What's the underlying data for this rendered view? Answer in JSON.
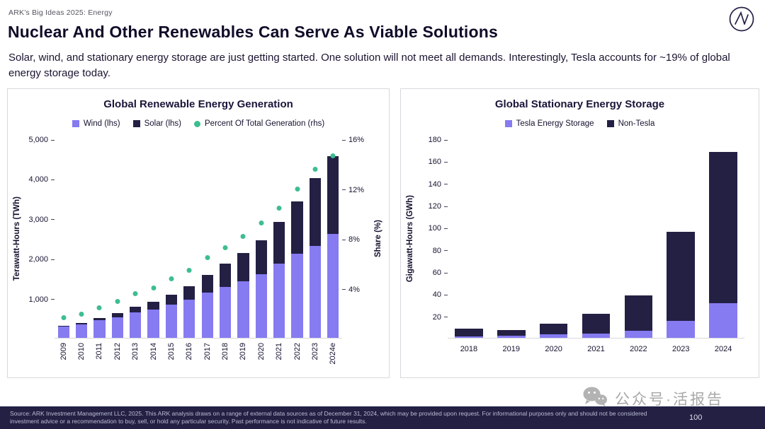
{
  "page": {
    "eyebrow": "ARK’s Big Ideas 2025: Energy",
    "title": "Nuclear And Other Renewables Can Serve As Viable Solutions",
    "subtitle": "Solar, wind, and stationary energy storage are just getting started. One solution will not meet all demands. Interestingly, Tesla accounts for ~19% of global energy storage today.",
    "page_number": "100"
  },
  "colors": {
    "purple": "#867BF1",
    "navy": "#232044",
    "green": "#3EBD90",
    "title": "#16112F",
    "panel_border": "#D9D9DE",
    "footer_bg": "#232044",
    "watermark_gray": "#A8A8A8"
  },
  "chart_data": [
    {
      "type": "bar",
      "subtype": "stacked-bars-with-scatter-overlay",
      "title": "Global Renewable Energy Generation",
      "ylabel": "Terawatt-Hours (TWh)",
      "y2label": "Share (%)",
      "ylim": [
        0,
        5000
      ],
      "y2lim": [
        0,
        16
      ],
      "grid": false,
      "legend_position": "top",
      "rotate_categories": true,
      "categories": [
        "2009",
        "2010",
        "2011",
        "2012",
        "2013",
        "2014",
        "2015",
        "2016",
        "2017",
        "2018",
        "2019",
        "2020",
        "2021",
        "2022",
        "2023",
        "2024e"
      ],
      "series": [
        {
          "name": "Wind (lhs)",
          "color": "purple",
          "shape": "square",
          "values": [
            276,
            342,
            436,
            523,
            645,
            706,
            831,
            959,
            1136,
            1269,
            1420,
            1591,
            1862,
            2104,
            2310,
            2600
          ]
        },
        {
          "name": "Solar (lhs)",
          "color": "navy",
          "shape": "square",
          "values": [
            20,
            32,
            63,
            99,
            139,
            198,
            256,
            329,
            443,
            585,
            704,
            853,
            1040,
            1310,
            1700,
            1950
          ]
        }
      ],
      "overlay": {
        "name": "Percent Of Total Generation (rhs)",
        "color": "green",
        "shape": "circle",
        "axis": "right",
        "values": [
          1.6,
          1.9,
          2.4,
          2.9,
          3.5,
          4.0,
          4.7,
          5.4,
          6.4,
          7.2,
          8.1,
          9.2,
          10.4,
          11.9,
          13.5,
          14.6
        ]
      },
      "yticks": [
        {
          "v": 1000,
          "label": "1,000"
        },
        {
          "v": 2000,
          "label": "2,000"
        },
        {
          "v": 3000,
          "label": "3,000"
        },
        {
          "v": 4000,
          "label": "4,000"
        },
        {
          "v": 5000,
          "label": "5,000"
        }
      ],
      "y2ticks": [
        {
          "v": 4,
          "label": "4%"
        },
        {
          "v": 8,
          "label": "8%"
        },
        {
          "v": 12,
          "label": "12%"
        },
        {
          "v": 16,
          "label": "16%"
        }
      ]
    },
    {
      "type": "bar",
      "subtype": "stacked-bars",
      "title": "Global Stationary Energy Storage",
      "ylabel": "Gigawatt-Hours (GWh)",
      "ylim": [
        0,
        180
      ],
      "grid": false,
      "legend_position": "top",
      "rotate_categories": false,
      "categories": [
        "2018",
        "2019",
        "2020",
        "2021",
        "2022",
        "2023",
        "2024"
      ],
      "series": [
        {
          "name": "Tesla Energy Storage",
          "color": "purple",
          "shape": "square",
          "values": [
            1.0,
            1.7,
            3.0,
            4.0,
            6.5,
            15.5,
            31
          ]
        },
        {
          "name": "Non-Tesla",
          "color": "navy",
          "shape": "square",
          "values": [
            7.5,
            5.5,
            9.5,
            18,
            31.5,
            80.5,
            137
          ]
        }
      ],
      "yticks": [
        {
          "v": 20,
          "label": "20"
        },
        {
          "v": 40,
          "label": "40"
        },
        {
          "v": 60,
          "label": "60"
        },
        {
          "v": 80,
          "label": "80"
        },
        {
          "v": 100,
          "label": "100"
        },
        {
          "v": 120,
          "label": "120"
        },
        {
          "v": 140,
          "label": "140"
        },
        {
          "v": 160,
          "label": "160"
        },
        {
          "v": 180,
          "label": "180"
        }
      ]
    }
  ],
  "watermark": {
    "text": "公众号·活报告",
    "icon": "wechat-icon"
  },
  "footer": {
    "source": "Source: ARK Investment Management LLC, 2025. This ARK analysis draws on a range of external data sources as of December 31, 2024, which may be provided upon request. For informational purposes only and should not be considered investment advice or a recommendation to buy, sell, or hold any particular security. Past performance is not indicative of future results."
  }
}
